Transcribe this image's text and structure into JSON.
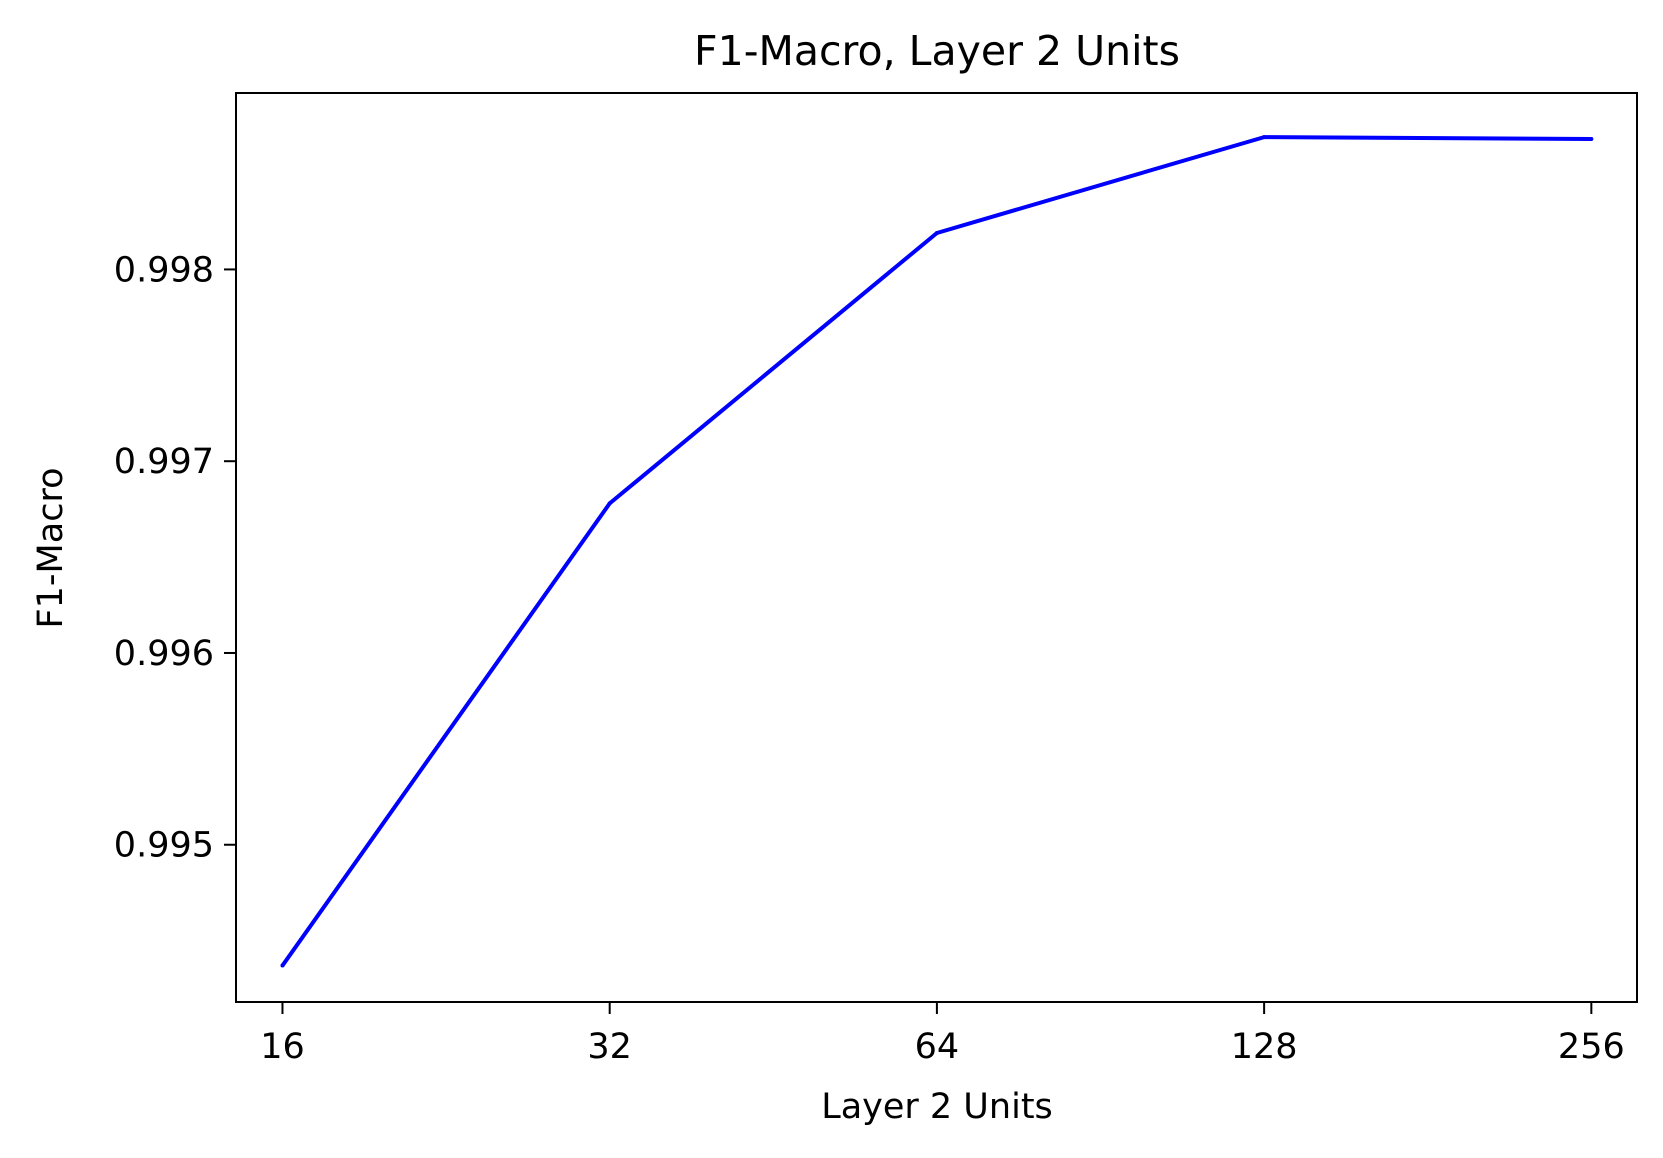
{
  "chart_data": {
    "type": "line",
    "title": "F1-Macro, Layer 2 Units",
    "xlabel": "Layer 2 Units",
    "ylabel": "F1-Macro",
    "x_scale": "log2",
    "x_ticks": [
      16,
      32,
      64,
      128,
      256
    ],
    "x_tick_labels": [
      "16",
      "32",
      "64",
      "128",
      "256"
    ],
    "y_ticks": [
      0.995,
      0.996,
      0.997,
      0.998
    ],
    "y_tick_labels": [
      "0.995",
      "0.996",
      "0.997",
      "0.998"
    ],
    "xlim": [
      14.5,
      282
    ],
    "ylim": [
      0.99418,
      0.99892
    ],
    "grid": false,
    "series": [
      {
        "color": "#0000ff",
        "x": [
          16,
          32,
          64,
          128,
          256
        ],
        "y": [
          0.99437,
          0.99678,
          0.99819,
          0.99869,
          0.99868
        ]
      }
    ]
  }
}
